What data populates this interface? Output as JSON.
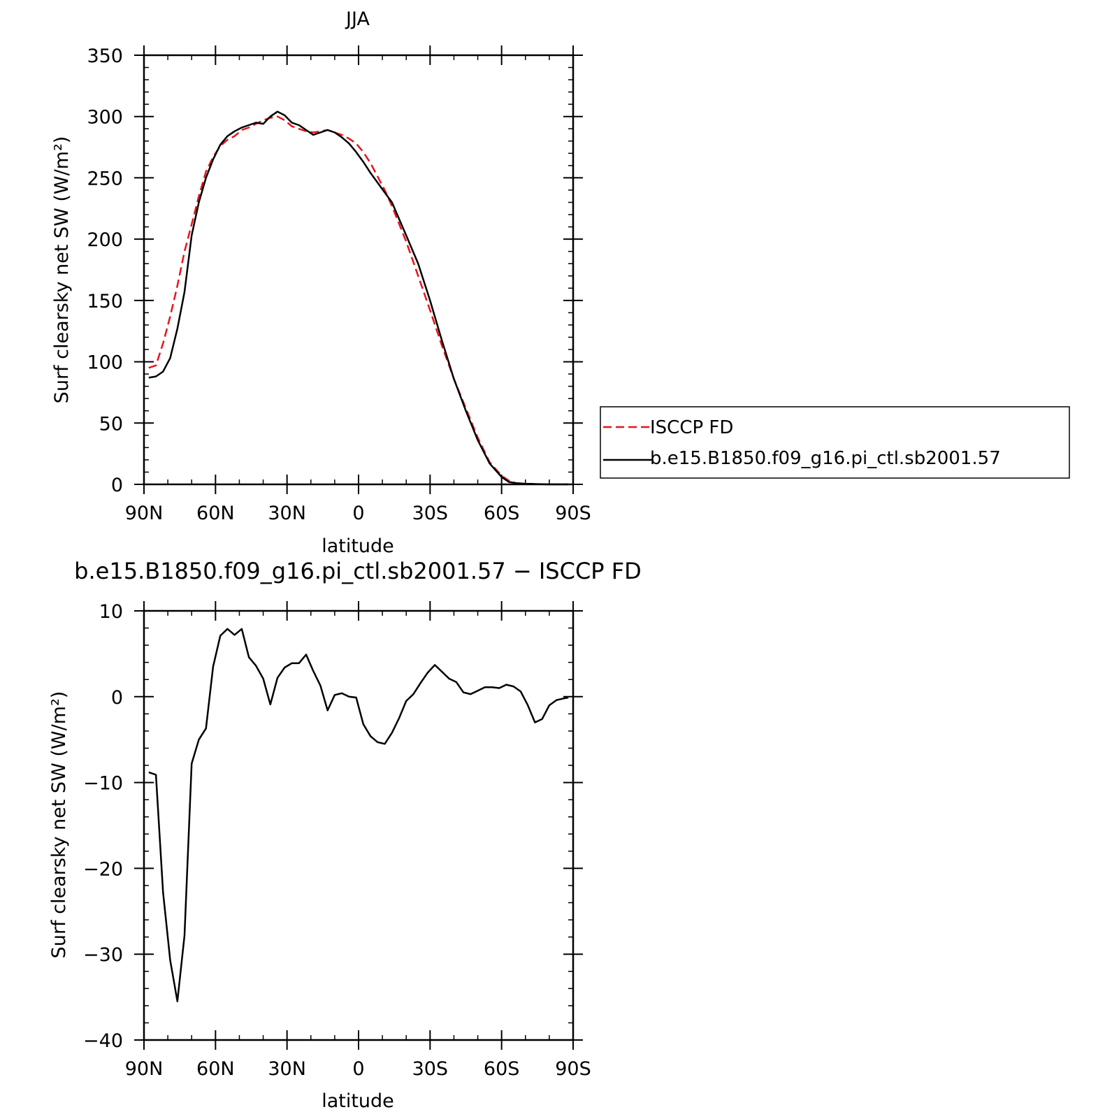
{
  "chart_data": [
    {
      "type": "line",
      "title": "JJA",
      "xlabel": "latitude",
      "ylabel": "Surf clearsky net SW (W/m²)",
      "xlim": [
        -90,
        90
      ],
      "ylim": [
        0,
        350
      ],
      "x_ticks": [
        -90,
        -60,
        -30,
        0,
        30,
        60,
        90
      ],
      "x_tick_labels": [
        "90N",
        "60N",
        "30N",
        "0",
        "30S",
        "60S",
        "90S"
      ],
      "y_ticks": [
        0,
        50,
        100,
        150,
        200,
        250,
        300,
        350
      ],
      "y_tick_labels": [
        "0",
        "50",
        "100",
        "150",
        "200",
        "250",
        "300",
        "350"
      ],
      "legend_position": "right",
      "series": [
        {
          "name": "ISCCP FD",
          "color": "#e8141c",
          "style": "dashed",
          "x": [
            -88,
            -85,
            -82,
            -79,
            -76,
            -73,
            -70,
            -67,
            -64,
            -61,
            -58,
            -55,
            -52,
            -49,
            -46,
            -43,
            -40,
            -37,
            -34,
            -31,
            -28,
            -25,
            -22,
            -19,
            -16,
            -13,
            -10,
            -7,
            -4,
            -1,
            2,
            5,
            8,
            11,
            14,
            20,
            25,
            30,
            35,
            40,
            45,
            50,
            55,
            60,
            63,
            66,
            70,
            75,
            80,
            85,
            88
          ],
          "y": [
            95,
            97,
            115,
            137,
            162,
            190,
            212,
            235,
            255,
            267,
            276,
            281,
            284,
            289,
            291,
            294,
            297,
            299,
            300,
            297,
            292,
            290,
            288,
            287,
            288,
            289,
            287,
            285,
            282,
            278,
            271,
            262,
            251,
            240,
            227,
            198,
            170,
            142,
            113,
            86,
            62,
            38,
            18,
            7,
            3,
            1,
            0.5,
            0.2,
            0,
            0,
            0
          ]
        },
        {
          "name": "b.e15.B1850.f09_g16.pi_ctl.sb2001.57",
          "color": "#000000",
          "style": "solid",
          "x": [
            -88,
            -85,
            -82,
            -79,
            -76,
            -73,
            -70,
            -67,
            -64,
            -61,
            -58,
            -55,
            -52,
            -49,
            -46,
            -43,
            -40,
            -37,
            -34,
            -31,
            -28,
            -25,
            -22,
            -19,
            -16,
            -13,
            -10,
            -7,
            -4,
            -1,
            2,
            5,
            8,
            11,
            14,
            20,
            25,
            30,
            35,
            40,
            45,
            50,
            55,
            60,
            63,
            66,
            70,
            75,
            80,
            85,
            88
          ],
          "y": [
            87,
            88,
            92,
            103,
            127,
            157,
            203,
            230,
            250,
            265,
            277,
            284,
            288,
            291,
            293,
            295,
            294,
            300,
            304,
            301,
            295,
            293,
            289,
            285,
            287,
            289,
            287,
            283,
            278,
            271,
            263,
            254,
            246,
            238,
            230,
            203,
            180,
            150,
            117,
            86,
            60,
            36,
            17,
            6,
            2,
            1,
            0.5,
            0.2,
            0,
            0,
            0
          ]
        }
      ]
    },
    {
      "type": "line",
      "title": "b.e15.B1850.f09_g16.pi_ctl.sb2001.57 − ISCCP FD",
      "xlabel": "latitude",
      "ylabel": "Surf clearsky net SW (W/m²)",
      "xlim": [
        -90,
        90
      ],
      "ylim": [
        -40,
        10
      ],
      "x_ticks": [
        -90,
        -60,
        -30,
        0,
        30,
        60,
        90
      ],
      "x_tick_labels": [
        "90N",
        "60N",
        "30N",
        "0",
        "30S",
        "60S",
        "90S"
      ],
      "y_ticks": [
        -40,
        -30,
        -20,
        -10,
        0,
        10
      ],
      "y_tick_labels": [
        "−40",
        "−30",
        "−20",
        "−10",
        "0",
        "10"
      ],
      "series": [
        {
          "color": "#000000",
          "style": "solid",
          "x": [
            -88,
            -85,
            -82,
            -79,
            -76,
            -73,
            -70,
            -67,
            -64,
            -61,
            -58,
            -55,
            -52,
            -49,
            -46,
            -43,
            -40,
            -37,
            -34,
            -31,
            -28,
            -25,
            -22,
            -19,
            -16,
            -13,
            -10,
            -7,
            -4,
            -1,
            2,
            5,
            8,
            11,
            14,
            17,
            20,
            23,
            26,
            29,
            32,
            35,
            38,
            41,
            44,
            47,
            50,
            53,
            56,
            59,
            62,
            65,
            68,
            71,
            74,
            77,
            80,
            83,
            86,
            88
          ],
          "y": [
            -8.8,
            -9.1,
            -22.8,
            -30.7,
            -35.5,
            -27.8,
            -7.8,
            -5.0,
            -3.7,
            3.5,
            7.1,
            7.9,
            7.2,
            7.9,
            4.6,
            3.6,
            2.1,
            -0.9,
            2.2,
            3.4,
            3.9,
            3.9,
            4.9,
            3.0,
            1.3,
            -1.6,
            0.2,
            0.4,
            0.0,
            -0.1,
            -3.2,
            -4.6,
            -5.3,
            -5.5,
            -4.2,
            -2.5,
            -0.5,
            0.3,
            1.6,
            2.8,
            3.7,
            2.9,
            2.1,
            1.7,
            0.5,
            0.3,
            0.7,
            1.1,
            1.1,
            1.0,
            1.4,
            1.2,
            0.6,
            -1.0,
            -3.0,
            -2.6,
            -1.0,
            -0.4,
            -0.2,
            -0.1
          ]
        }
      ]
    }
  ]
}
